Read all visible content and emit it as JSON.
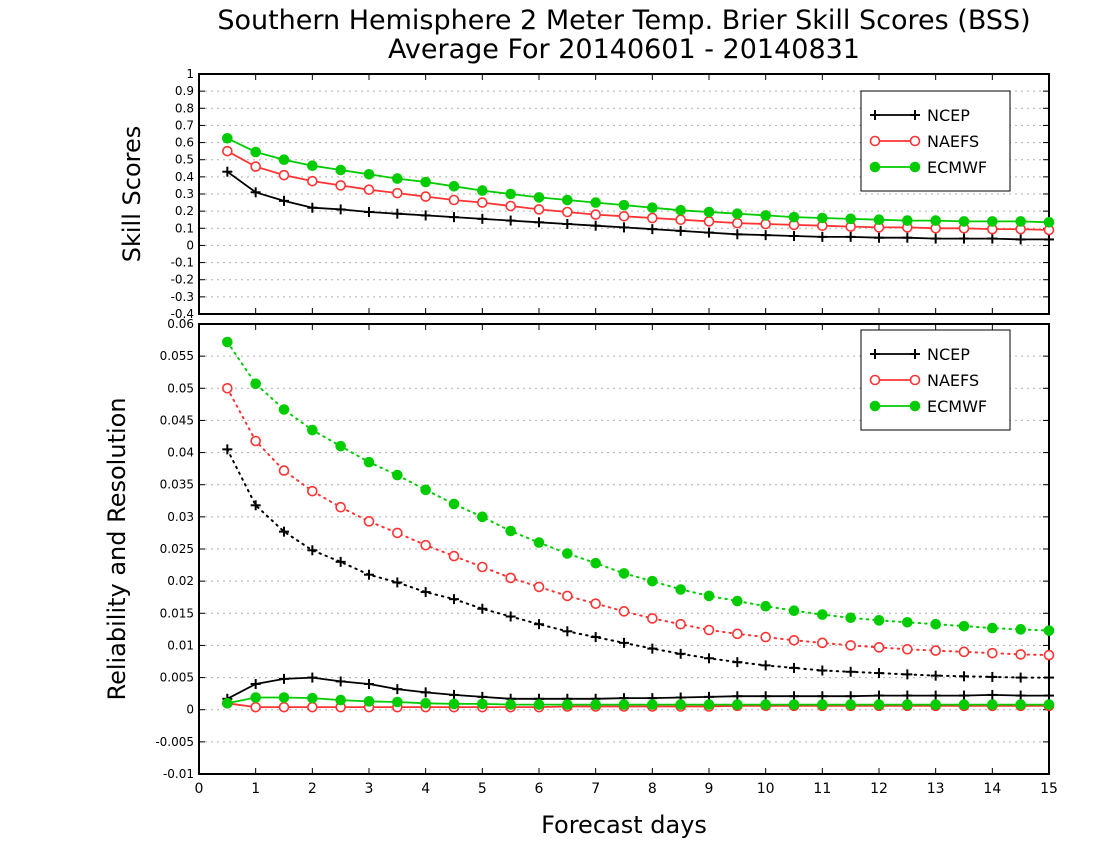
{
  "title_line1": "Southern Hemisphere 2 Meter Temp. Brier Skill Scores (BSS)",
  "title_line2": "Average For 20140601 - 20140831",
  "xlabel": "Forecast days",
  "colors": {
    "NCEP": "#000000",
    "NAEFS": "#ff3333",
    "ECMWF": "#00cc00"
  },
  "chart_data": [
    {
      "type": "line",
      "title": "",
      "xlabel": "Forecast days",
      "ylabel": "Skill Scores",
      "xlim": [
        0,
        15
      ],
      "ylim": [
        -0.4,
        1
      ],
      "x_ticks": [
        "0",
        "1",
        "2",
        "3",
        "4",
        "5",
        "6",
        "7",
        "8",
        "9",
        "10",
        "11",
        "12",
        "13",
        "14",
        "15"
      ],
      "y_ticks": [
        "-0.4",
        "-0.3",
        "-0.2",
        "-0.1",
        "0",
        "0.1",
        "0.2",
        "0.3",
        "0.4",
        "0.5",
        "0.6",
        "0.7",
        "0.8",
        "0.9",
        "1"
      ],
      "grid": true,
      "legend_position": "top-right",
      "x": [
        0.5,
        1,
        1.5,
        2,
        2.5,
        3,
        3.5,
        4,
        4.5,
        5,
        5.5,
        6,
        6.5,
        7,
        7.5,
        8,
        8.5,
        9,
        9.5,
        10,
        10.5,
        11,
        11.5,
        12,
        12.5,
        13,
        13.5,
        14,
        14.5,
        15
      ],
      "series": [
        {
          "name": "NCEP",
          "marker": "plus",
          "line": "solid",
          "values": [
            0.43,
            0.31,
            0.26,
            0.22,
            0.21,
            0.195,
            0.185,
            0.175,
            0.165,
            0.155,
            0.145,
            0.135,
            0.125,
            0.115,
            0.105,
            0.095,
            0.085,
            0.075,
            0.065,
            0.06,
            0.055,
            0.05,
            0.05,
            0.045,
            0.045,
            0.04,
            0.04,
            0.04,
            0.035,
            0.035
          ]
        },
        {
          "name": "NAEFS",
          "marker": "open-circle",
          "line": "solid",
          "values": [
            0.55,
            0.46,
            0.41,
            0.375,
            0.35,
            0.325,
            0.305,
            0.285,
            0.265,
            0.25,
            0.23,
            0.21,
            0.195,
            0.18,
            0.17,
            0.16,
            0.15,
            0.14,
            0.13,
            0.125,
            0.12,
            0.115,
            0.11,
            0.105,
            0.105,
            0.1,
            0.1,
            0.095,
            0.095,
            0.09
          ]
        },
        {
          "name": "ECMWF",
          "marker": "filled-circle",
          "line": "solid",
          "values": [
            0.625,
            0.545,
            0.5,
            0.465,
            0.44,
            0.415,
            0.39,
            0.37,
            0.345,
            0.32,
            0.3,
            0.28,
            0.265,
            0.25,
            0.235,
            0.22,
            0.205,
            0.195,
            0.185,
            0.175,
            0.165,
            0.16,
            0.155,
            0.15,
            0.145,
            0.145,
            0.14,
            0.14,
            0.14,
            0.135
          ]
        }
      ]
    },
    {
      "type": "line",
      "title": "",
      "xlabel": "Forecast days",
      "ylabel": "Reliability and Resolution",
      "xlim": [
        0,
        15
      ],
      "ylim": [
        -0.01,
        0.06
      ],
      "x_ticks": [
        "0",
        "1",
        "2",
        "3",
        "4",
        "5",
        "6",
        "7",
        "8",
        "9",
        "10",
        "11",
        "12",
        "13",
        "14",
        "15"
      ],
      "y_ticks": [
        "-0.01",
        "-0.005",
        "0",
        "0.005",
        "0.01",
        "0.015",
        "0.02",
        "0.025",
        "0.03",
        "0.035",
        "0.04",
        "0.045",
        "0.05",
        "0.055",
        "0.06"
      ],
      "grid": true,
      "legend_position": "top-right",
      "x": [
        0.5,
        1,
        1.5,
        2,
        2.5,
        3,
        3.5,
        4,
        4.5,
        5,
        5.5,
        6,
        6.5,
        7,
        7.5,
        8,
        8.5,
        9,
        9.5,
        10,
        10.5,
        11,
        11.5,
        12,
        12.5,
        13,
        13.5,
        14,
        14.5,
        15
      ],
      "series": [
        {
          "name": "NCEP",
          "marker": "plus",
          "line": "dotted",
          "values": [
            0.0405,
            0.0318,
            0.0277,
            0.0248,
            0.023,
            0.021,
            0.0198,
            0.0183,
            0.0172,
            0.0157,
            0.0145,
            0.0133,
            0.0122,
            0.0113,
            0.0104,
            0.0095,
            0.0087,
            0.008,
            0.0074,
            0.0069,
            0.0065,
            0.0061,
            0.0059,
            0.0057,
            0.0055,
            0.0053,
            0.0052,
            0.0051,
            0.005,
            0.005
          ]
        },
        {
          "name": "NAEFS",
          "marker": "open-circle",
          "line": "dotted",
          "values": [
            0.05,
            0.0418,
            0.0372,
            0.034,
            0.0315,
            0.0293,
            0.0275,
            0.0256,
            0.0239,
            0.0222,
            0.0205,
            0.0191,
            0.0177,
            0.0165,
            0.0153,
            0.0142,
            0.0133,
            0.0124,
            0.0118,
            0.0113,
            0.0108,
            0.0104,
            0.01,
            0.0097,
            0.0094,
            0.0092,
            0.009,
            0.0088,
            0.0086,
            0.0085
          ]
        },
        {
          "name": "ECMWF",
          "marker": "filled-circle",
          "line": "dotted",
          "values": [
            0.0572,
            0.0507,
            0.0467,
            0.0435,
            0.041,
            0.0385,
            0.0365,
            0.0342,
            0.032,
            0.03,
            0.0278,
            0.026,
            0.0243,
            0.0228,
            0.0212,
            0.02,
            0.0187,
            0.0177,
            0.0169,
            0.0161,
            0.0154,
            0.0148,
            0.0143,
            0.0139,
            0.0136,
            0.0133,
            0.013,
            0.0127,
            0.0125,
            0.0123
          ]
        },
        {
          "name": "NCEP",
          "marker": "plus",
          "line": "solid",
          "legend": false,
          "values": [
            0.0017,
            0.004,
            0.0048,
            0.005,
            0.0044,
            0.004,
            0.0032,
            0.0027,
            0.0023,
            0.002,
            0.0017,
            0.0017,
            0.0017,
            0.0017,
            0.0018,
            0.0018,
            0.0019,
            0.002,
            0.0021,
            0.0021,
            0.0021,
            0.0021,
            0.0021,
            0.0022,
            0.0022,
            0.0022,
            0.0022,
            0.0023,
            0.0022,
            0.0022
          ]
        },
        {
          "name": "NAEFS",
          "marker": "open-circle",
          "line": "solid",
          "legend": false,
          "values": [
            0.001,
            0.0004,
            0.0004,
            0.0004,
            0.0004,
            0.0004,
            0.0004,
            0.0004,
            0.0004,
            0.0004,
            0.0004,
            0.0004,
            0.0005,
            0.0005,
            0.0005,
            0.0005,
            0.0005,
            0.0005,
            0.0006,
            0.0006,
            0.0006,
            0.0006,
            0.0006,
            0.0006,
            0.0006,
            0.0006,
            0.0006,
            0.0006,
            0.0006,
            0.0006
          ]
        },
        {
          "name": "ECMWF",
          "marker": "filled-circle",
          "line": "solid",
          "legend": false,
          "values": [
            0.001,
            0.0019,
            0.0019,
            0.0018,
            0.0015,
            0.0013,
            0.0012,
            0.001,
            0.0009,
            0.0009,
            0.0008,
            0.0008,
            0.0008,
            0.0008,
            0.0008,
            0.0008,
            0.0008,
            0.0008,
            0.0008,
            0.0008,
            0.0008,
            0.0008,
            0.0008,
            0.0008,
            0.0008,
            0.0008,
            0.0008,
            0.0008,
            0.0008,
            0.0008
          ]
        }
      ]
    }
  ]
}
